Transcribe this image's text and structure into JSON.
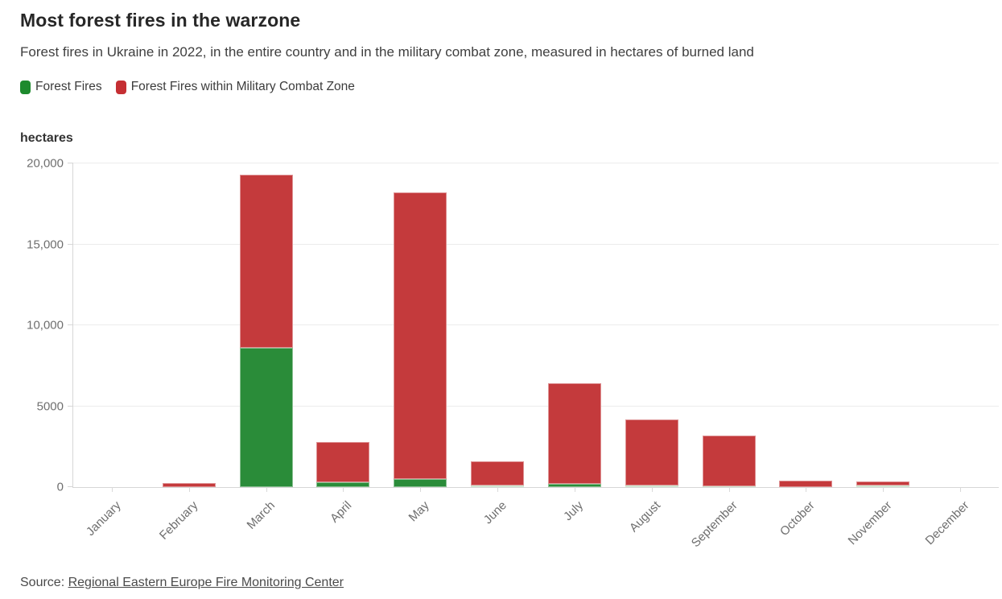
{
  "header": {
    "title": "Most forest fires in the warzone",
    "subtitle": "Forest fires in Ukraine in 2022, in the entire country and in the military combat zone, measured in hectares of burned land"
  },
  "legend": {
    "items": [
      {
        "label": "Forest Fires",
        "color": "#1d8a2d"
      },
      {
        "label": "Forest Fires within Military Combat Zone",
        "color": "#c52f33"
      }
    ]
  },
  "chart_data": {
    "type": "bar",
    "stacked": true,
    "title": "Most forest fires in the warzone",
    "ylabel": "hectares",
    "xlabel": "",
    "ylim": [
      0,
      20000
    ],
    "grid": true,
    "legend_position": "top",
    "categories": [
      "January",
      "February",
      "March",
      "April",
      "May",
      "June",
      "July",
      "August",
      "September",
      "October",
      "November",
      "December"
    ],
    "series": [
      {
        "name": "Forest Fires",
        "color": "#2a8c39",
        "color_thin": "#a9d3ab",
        "values": [
          0,
          0,
          8600,
          300,
          500,
          100,
          200,
          100,
          50,
          0,
          120,
          0
        ]
      },
      {
        "name": "Forest Fires within Military Combat Zone",
        "color": "#c43a3c",
        "color_thin": "#d98f90",
        "values": [
          0,
          230,
          10700,
          2500,
          17700,
          1500,
          6200,
          4100,
          3150,
          400,
          210,
          0
        ]
      }
    ],
    "yticks": [
      {
        "value": 0,
        "label": "0"
      },
      {
        "value": 5000,
        "label": "5000"
      },
      {
        "value": 10000,
        "label": "10,000"
      },
      {
        "value": 15000,
        "label": "15,000"
      },
      {
        "value": 20000,
        "label": "20,000"
      }
    ]
  },
  "source": {
    "prefix": "Source: ",
    "link_label": "Regional Eastern Europe Fire Monitoring Center"
  }
}
